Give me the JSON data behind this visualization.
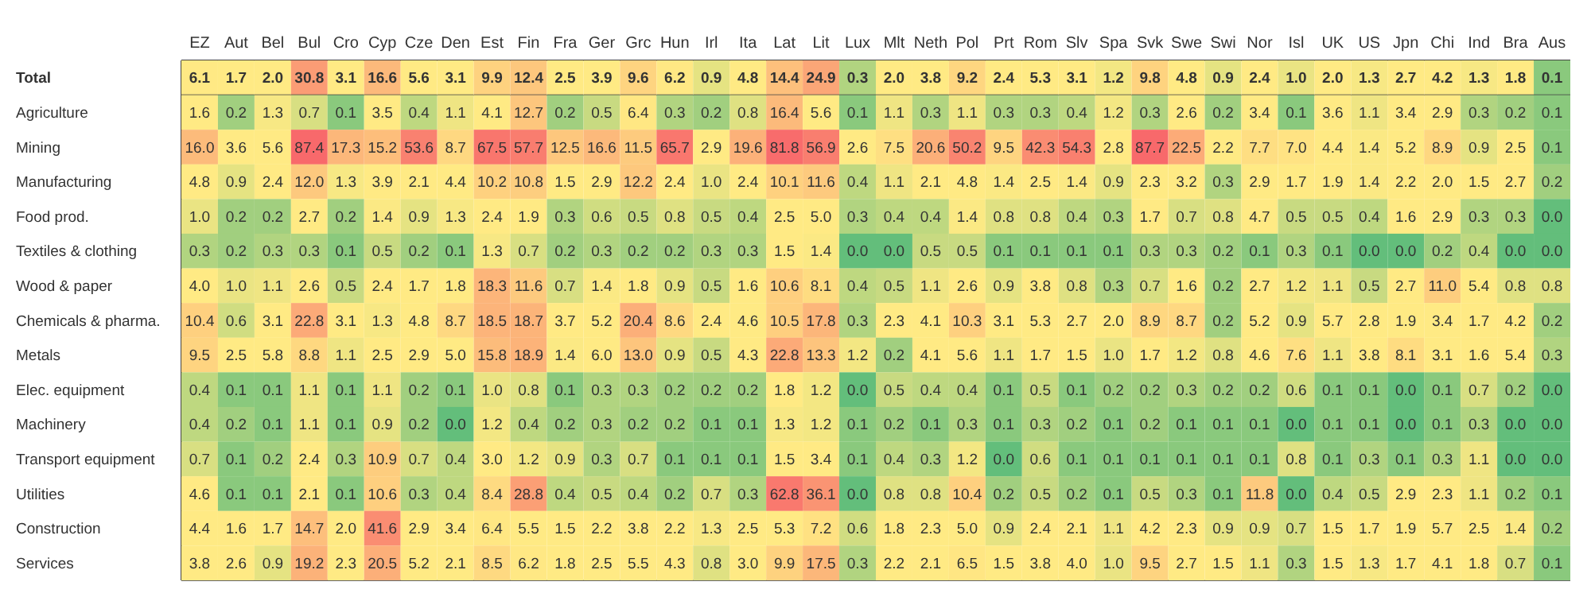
{
  "chart_data": {
    "type": "heatmap",
    "categories": [
      "EZ",
      "Aut",
      "Bel",
      "Bul",
      "Cro",
      "Cyp",
      "Cze",
      "Den",
      "Est",
      "Fin",
      "Fra",
      "Ger",
      "Grc",
      "Hun",
      "Irl",
      "Ita",
      "Lat",
      "Lit",
      "Lux",
      "Mlt",
      "Neth",
      "Pol",
      "Prt",
      "Rom",
      "Slv",
      "Spa",
      "Svk",
      "Swe",
      "Swi",
      "Nor",
      "Isl",
      "UK",
      "US",
      "Jpn",
      "Chi",
      "Ind",
      "Bra",
      "Aus"
    ],
    "y_categories": [
      "Total",
      "Agriculture",
      "Mining",
      "Manufacturing",
      "Food prod.",
      "Textiles & clothing",
      "Wood & paper",
      "Chemicals & pharma.",
      "Metals",
      "Elec. equipment",
      "Machinery",
      "Transport equipment",
      "Utilities",
      "Construction",
      "Services"
    ],
    "cells": [
      [
        6.1,
        1.7,
        2.0,
        30.8,
        3.1,
        16.6,
        5.6,
        3.1,
        9.9,
        12.4,
        2.5,
        3.9,
        9.6,
        6.2,
        0.9,
        4.8,
        14.4,
        24.9,
        0.3,
        2.0,
        3.8,
        9.2,
        2.4,
        5.3,
        3.1,
        1.2,
        9.8,
        4.8,
        0.9,
        2.4,
        1.0,
        2.0,
        1.3,
        2.7,
        4.2,
        1.3,
        1.8,
        0.1
      ],
      [
        1.6,
        0.2,
        1.3,
        0.7,
        0.1,
        3.5,
        0.4,
        1.1,
        4.1,
        12.7,
        0.2,
        0.5,
        6.4,
        0.3,
        0.2,
        0.8,
        16.4,
        5.6,
        0.1,
        1.1,
        0.3,
        1.1,
        0.3,
        0.3,
        0.4,
        1.2,
        0.3,
        2.6,
        0.2,
        3.4,
        0.1,
        3.6,
        1.1,
        3.4,
        2.9,
        0.3,
        0.2,
        0.1
      ],
      [
        16.0,
        3.6,
        5.6,
        87.4,
        17.3,
        15.2,
        53.6,
        8.7,
        67.5,
        57.7,
        12.5,
        16.6,
        11.5,
        65.7,
        2.9,
        19.6,
        81.8,
        56.9,
        2.6,
        7.5,
        20.6,
        50.2,
        9.5,
        42.3,
        54.3,
        2.8,
        87.7,
        22.5,
        2.2,
        7.7,
        7.0,
        4.4,
        1.4,
        5.2,
        8.9,
        0.9,
        2.5,
        0.1
      ],
      [
        4.8,
        0.9,
        2.4,
        12.0,
        1.3,
        3.9,
        2.1,
        4.4,
        10.2,
        10.8,
        1.5,
        2.9,
        12.2,
        2.4,
        1.0,
        2.4,
        10.1,
        11.6,
        0.4,
        1.1,
        2.1,
        4.8,
        1.4,
        2.5,
        1.4,
        0.9,
        2.3,
        3.2,
        0.3,
        2.9,
        1.7,
        1.9,
        1.4,
        2.2,
        2.0,
        1.5,
        2.7,
        0.2
      ],
      [
        1.0,
        0.2,
        0.2,
        2.7,
        0.2,
        1.4,
        0.9,
        1.3,
        2.4,
        1.9,
        0.3,
        0.6,
        0.5,
        0.8,
        0.5,
        0.4,
        2.5,
        5.0,
        0.3,
        0.4,
        0.4,
        1.4,
        0.8,
        0.8,
        0.4,
        0.3,
        1.7,
        0.7,
        0.8,
        4.7,
        0.5,
        0.5,
        0.4,
        1.6,
        2.9,
        0.3,
        0.3,
        0.0
      ],
      [
        0.3,
        0.2,
        0.3,
        0.3,
        0.1,
        0.5,
        0.2,
        0.1,
        1.3,
        0.7,
        0.2,
        0.3,
        0.2,
        0.2,
        0.3,
        0.3,
        1.5,
        1.4,
        0.0,
        0.0,
        0.5,
        0.5,
        0.1,
        0.1,
        0.1,
        0.1,
        0.3,
        0.3,
        0.2,
        0.1,
        0.3,
        0.1,
        0.0,
        0.0,
        0.2,
        0.4,
        0.0,
        0.0
      ],
      [
        4.0,
        1.0,
        1.1,
        2.6,
        0.5,
        2.4,
        1.7,
        1.8,
        18.3,
        11.6,
        0.7,
        1.4,
        1.8,
        0.9,
        0.5,
        1.6,
        10.6,
        8.1,
        0.4,
        0.5,
        1.1,
        2.6,
        0.9,
        3.8,
        0.8,
        0.3,
        0.7,
        1.6,
        0.2,
        2.7,
        1.2,
        1.1,
        0.5,
        2.7,
        11.0,
        5.4,
        0.8,
        0.8
      ],
      [
        10.4,
        0.6,
        3.1,
        22.8,
        3.1,
        1.3,
        4.8,
        8.7,
        18.5,
        18.7,
        3.7,
        5.2,
        20.4,
        8.6,
        2.4,
        4.6,
        10.5,
        17.8,
        0.3,
        2.3,
        4.1,
        10.3,
        3.1,
        5.3,
        2.7,
        2.0,
        8.9,
        8.7,
        0.2,
        5.2,
        0.9,
        5.7,
        2.8,
        1.9,
        3.4,
        1.7,
        4.2,
        0.2
      ],
      [
        9.5,
        2.5,
        5.8,
        8.8,
        1.1,
        2.5,
        2.9,
        5.0,
        15.8,
        18.9,
        1.4,
        6.0,
        13.0,
        0.9,
        0.5,
        4.3,
        22.8,
        13.3,
        1.2,
        0.2,
        4.1,
        5.6,
        1.1,
        1.7,
        1.5,
        1.0,
        1.7,
        1.2,
        0.8,
        4.6,
        7.6,
        1.1,
        3.8,
        8.1,
        3.1,
        1.6,
        5.4,
        0.3
      ],
      [
        0.4,
        0.1,
        0.1,
        1.1,
        0.1,
        1.1,
        0.2,
        0.1,
        1.0,
        0.8,
        0.1,
        0.3,
        0.3,
        0.2,
        0.2,
        0.2,
        1.8,
        1.2,
        0.0,
        0.5,
        0.4,
        0.4,
        0.1,
        0.5,
        0.1,
        0.2,
        0.2,
        0.3,
        0.2,
        0.2,
        0.6,
        0.1,
        0.1,
        0.0,
        0.1,
        0.7,
        0.2,
        0.0
      ],
      [
        0.4,
        0.2,
        0.1,
        1.1,
        0.1,
        0.9,
        0.2,
        0.0,
        1.2,
        0.4,
        0.2,
        0.3,
        0.2,
        0.2,
        0.1,
        0.1,
        1.3,
        1.2,
        0.1,
        0.2,
        0.1,
        0.3,
        0.1,
        0.3,
        0.2,
        0.1,
        0.2,
        0.1,
        0.1,
        0.1,
        0.0,
        0.1,
        0.1,
        0.0,
        0.1,
        0.3,
        0.0,
        0.0
      ],
      [
        0.7,
        0.1,
        0.2,
        2.4,
        0.3,
        10.9,
        0.7,
        0.4,
        3.0,
        1.2,
        0.9,
        0.3,
        0.7,
        0.1,
        0.1,
        0.1,
        1.5,
        3.4,
        0.1,
        0.4,
        0.3,
        1.2,
        0.0,
        0.6,
        0.1,
        0.1,
        0.1,
        0.1,
        0.1,
        0.1,
        0.8,
        0.1,
        0.3,
        0.1,
        0.3,
        1.1,
        0.0,
        0.0
      ],
      [
        4.6,
        0.1,
        0.1,
        2.1,
        0.1,
        10.6,
        0.3,
        0.4,
        8.4,
        28.8,
        0.4,
        0.5,
        0.4,
        0.2,
        0.7,
        0.3,
        62.8,
        36.1,
        0.0,
        0.8,
        0.8,
        10.4,
        0.2,
        0.5,
        0.2,
        0.1,
        0.5,
        0.3,
        0.1,
        11.8,
        0.0,
        0.4,
        0.5,
        2.9,
        2.3,
        1.1,
        0.2,
        0.1
      ],
      [
        4.4,
        1.6,
        1.7,
        14.7,
        2.0,
        41.6,
        2.9,
        3.4,
        6.4,
        5.5,
        1.5,
        2.2,
        3.8,
        2.2,
        1.3,
        2.5,
        5.3,
        7.2,
        0.6,
        1.8,
        2.3,
        5.0,
        0.9,
        2.4,
        2.1,
        1.1,
        4.2,
        2.3,
        0.9,
        0.9,
        0.7,
        1.5,
        1.7,
        1.9,
        5.7,
        2.5,
        1.4,
        0.2
      ],
      [
        3.8,
        2.6,
        0.9,
        19.2,
        2.3,
        20.5,
        5.2,
        2.1,
        8.5,
        6.2,
        1.8,
        2.5,
        5.5,
        4.3,
        0.8,
        3.0,
        9.9,
        17.5,
        0.3,
        2.2,
        2.1,
        6.5,
        1.5,
        3.8,
        4.0,
        1.0,
        9.5,
        2.7,
        1.5,
        1.1,
        0.3,
        1.5,
        1.3,
        1.7,
        4.1,
        1.8,
        0.7,
        0.1
      ]
    ],
    "cell_labels": [
      [
        "6.1",
        "1.7",
        "2.0",
        "30.8",
        "3.1",
        "16.6",
        "5.6",
        "3.1",
        "9.9",
        "12.4",
        "2.5",
        "3.9",
        "9.6",
        "6.2",
        "0.9",
        "4.8",
        "14.4",
        "24.9",
        "0.3",
        "2.0",
        "3.8",
        "9.2",
        "2.4",
        "5.3",
        "3.1",
        "1.2",
        "9.8",
        "4.8",
        "0.9",
        "2.4",
        "1.0",
        "2.0",
        "1.3",
        "2.7",
        "4.2",
        "1.3",
        "1.8",
        "0.1"
      ],
      [
        "1.6",
        "0.2",
        "1.3",
        "0.7",
        "0.1",
        "3.5",
        "0.4",
        "1.1",
        "4.1",
        "12.7",
        "0.2",
        "0.5",
        "6.4",
        "0.3",
        "0.2",
        "0.8",
        "16.4",
        "5.6",
        "0.1",
        "1.1",
        "0.3",
        "1.1",
        "0.3",
        "0.3",
        "0.4",
        "1.2",
        "0.3",
        "2.6",
        "0.2",
        "3.4",
        "0.1",
        "3.6",
        "1.1",
        "3.4",
        "2.9",
        "0.3",
        "0.2",
        "0.1"
      ],
      [
        "16.0",
        "3.6",
        "5.6",
        "87.4",
        "17.3",
        "15.2",
        "53.6",
        "8.7",
        "67.5",
        "57.7",
        "12.5",
        "16.6",
        "11.5",
        "65.7",
        "2.9",
        "19.6",
        "81.8",
        "56.9",
        "2.6",
        "7.5",
        "20.6",
        "50.2",
        "9.5",
        "42.3",
        "54.3",
        "2.8",
        "87.7",
        "22.5",
        "2.2",
        "7.7",
        "7.0",
        "4.4",
        "1.4",
        "5.2",
        "8.9",
        "0.9",
        "2.5",
        "0.1"
      ],
      [
        "4.8",
        "0.9",
        "2.4",
        "12.0",
        "1.3",
        "3.9",
        "2.1",
        "4.4",
        "10.2",
        "10.8",
        "1.5",
        "2.9",
        "12.2",
        "2.4",
        "1.0",
        "2.4",
        "10.1",
        "11.6",
        "0.4",
        "1.1",
        "2.1",
        "4.8",
        "1.4",
        "2.5",
        "1.4",
        "0.9",
        "2.3",
        "3.2",
        "0.3",
        "2.9",
        "1.7",
        "1.9",
        "1.4",
        "2.2",
        "2.0",
        "1.5",
        "2.7",
        "0.2"
      ],
      [
        "1.0",
        "0.2",
        "0.2",
        "2.7",
        "0.2",
        "1.4",
        "0.9",
        "1.3",
        "2.4",
        "1.9",
        "0.3",
        "0.6",
        "0.5",
        "0.8",
        "0.5",
        "0.4",
        "2.5",
        "5.0",
        "0.3",
        "0.4",
        "0.4",
        "1.4",
        "0.8",
        "0.8",
        "0.4",
        "0.3",
        "1.7",
        "0.7",
        "0.8",
        "4.7",
        "0.5",
        "0.5",
        "0.4",
        "1.6",
        "2.9",
        "0.3",
        "0.3",
        "0.0"
      ],
      [
        "0.3",
        "0.2",
        "0.3",
        "0.3",
        "0.1",
        "0.5",
        "0.2",
        "0.1",
        "1.3",
        "0.7",
        "0.2",
        "0.3",
        "0.2",
        "0.2",
        "0.3",
        "0.3",
        "1.5",
        "1.4",
        "0.0",
        "0.0",
        "0.5",
        "0.5",
        "0.1",
        "0.1",
        "0.1",
        "0.1",
        "0.3",
        "0.3",
        "0.2",
        "0.1",
        "0.3",
        "0.1",
        "0.0",
        "0.0",
        "0.2",
        "0.4",
        "0.0",
        "0.0"
      ],
      [
        "4.0",
        "1.0",
        "1.1",
        "2.6",
        "0.5",
        "2.4",
        "1.7",
        "1.8",
        "18.3",
        "11.6",
        "0.7",
        "1.4",
        "1.8",
        "0.9",
        "0.5",
        "1.6",
        "10.6",
        "8.1",
        "0.4",
        "0.5",
        "1.1",
        "2.6",
        "0.9",
        "3.8",
        "0.8",
        "0.3",
        "0.7",
        "1.6",
        "0.2",
        "2.7",
        "1.2",
        "1.1",
        "0.5",
        "2.7",
        "11.0",
        "5.4",
        "0.8",
        "0.8"
      ],
      [
        "10.4",
        "0.6",
        "3.1",
        "22.8",
        "3.1",
        "1.3",
        "4.8",
        "8.7",
        "18.5",
        "18.7",
        "3.7",
        "5.2",
        "20.4",
        "8.6",
        "2.4",
        "4.6",
        "10.5",
        "17.8",
        "0.3",
        "2.3",
        "4.1",
        "10.3",
        "3.1",
        "5.3",
        "2.7",
        "2.0",
        "8.9",
        "8.7",
        "0.2",
        "5.2",
        "0.9",
        "5.7",
        "2.8",
        "1.9",
        "3.4",
        "1.7",
        "4.2",
        "0.2"
      ],
      [
        "9.5",
        "2.5",
        "5.8",
        "8.8",
        "1.1",
        "2.5",
        "2.9",
        "5.0",
        "15.8",
        "18.9",
        "1.4",
        "6.0",
        "13.0",
        "0.9",
        "0.5",
        "4.3",
        "22.8",
        "13.3",
        "1.2",
        "0.2",
        "4.1",
        "5.6",
        "1.1",
        "1.7",
        "1.5",
        "1.0",
        "1.7",
        "1.2",
        "0.8",
        "4.6",
        "7.6",
        "1.1",
        "3.8",
        "8.1",
        "3.1",
        "1.6",
        "5.4",
        "0.3"
      ],
      [
        "0.4",
        "0.1",
        "0.1",
        "1.1",
        "0.1",
        "1.1",
        "0.2",
        "0.1",
        "1.0",
        "0.8",
        "0.1",
        "0.3",
        "0.3",
        "0.2",
        "0.2",
        "0.2",
        "1.8",
        "1.2",
        "0.0",
        "0.5",
        "0.4",
        "0.4",
        "0.1",
        "0.5",
        "0.1",
        "0.2",
        "0.2",
        "0.3",
        "0.2",
        "0.2",
        "0.6",
        "0.1",
        "0.1",
        "0.0",
        "0.1",
        "0.7",
        "0.2",
        "0.0"
      ],
      [
        "0.4",
        "0.2",
        "0.1",
        "1.1",
        "0.1",
        "0.9",
        "0.2",
        "0.0",
        "1.2",
        "0.4",
        "0.2",
        "0.3",
        "0.2",
        "0.2",
        "0.1",
        "0.1",
        "1.3",
        "1.2",
        "0.1",
        "0.2",
        "0.1",
        "0.3",
        "0.1",
        "0.3",
        "0.2",
        "0.1",
        "0.2",
        "0.1",
        "0.1",
        "0.1",
        "0.0",
        "0.1",
        "0.1",
        "0.0",
        "0.1",
        "0.3",
        "0.0",
        "0.0"
      ],
      [
        "0.7",
        "0.1",
        "0.2",
        "2.4",
        "0.3",
        "10.9",
        "0.7",
        "0.4",
        "3.0",
        "1.2",
        "0.9",
        "0.3",
        "0.7",
        "0.1",
        "0.1",
        "0.1",
        "1.5",
        "3.4",
        "0.1",
        "0.4",
        "0.3",
        "1.2",
        "0.0",
        "0.6",
        "0.1",
        "0.1",
        "0.1",
        "0.1",
        "0.1",
        "0.1",
        "0.8",
        "0.1",
        "0.3",
        "0.1",
        "0.3",
        "1.1",
        "0.0",
        "0.0"
      ],
      [
        "4.6",
        "0.1",
        "0.1",
        "2.1",
        "0.1",
        "10.6",
        "0.3",
        "0.4",
        "8.4",
        "28.8",
        "0.4",
        "0.5",
        "0.4",
        "0.2",
        "0.7",
        "0.3",
        "62.8",
        "36.1",
        "0.0",
        "0.8",
        "0.8",
        "10.4",
        "0.2",
        "0.5",
        "0.2",
        "0.1",
        "0.5",
        "0.3",
        "0.1",
        "11.8",
        "0.0",
        "0.4",
        "0.5",
        "2.9",
        "2.3",
        "1.1",
        "0.2",
        "0.1"
      ],
      [
        "4.4",
        "1.6",
        "1.7",
        "14.7",
        "2.0",
        "41.6",
        "2.9",
        "3.4",
        "6.4",
        "5.5",
        "1.5",
        "2.2",
        "3.8",
        "2.2",
        "1.3",
        "2.5",
        "5.3",
        "7.2",
        "0.6",
        "1.8",
        "2.3",
        "5.0",
        "0.9",
        "2.4",
        "2.1",
        "1.1",
        "4.2",
        "2.3",
        "0.9",
        "0.9",
        "0.7",
        "1.5",
        "1.7",
        "1.9",
        "5.7",
        "2.5",
        "1.4",
        "0.2"
      ],
      [
        "3.8",
        "2.6",
        "0.9",
        "19.2",
        "2.3",
        "20.5",
        "5.2",
        "2.1",
        "8.5",
        "6.2",
        "1.8",
        "2.5",
        "5.5",
        "4.3",
        "0.8",
        "3.0",
        "9.9",
        "17.5",
        "0.3",
        "2.2",
        "2.1",
        "6.5",
        "1.5",
        "3.8",
        "4.0",
        "1.0",
        "9.5",
        "2.7",
        "1.5",
        "1.1",
        "0.3",
        "1.5",
        "1.3",
        "1.7",
        "4.1",
        "1.8",
        "0.7",
        "0.1"
      ]
    ],
    "data_labels": true
  }
}
